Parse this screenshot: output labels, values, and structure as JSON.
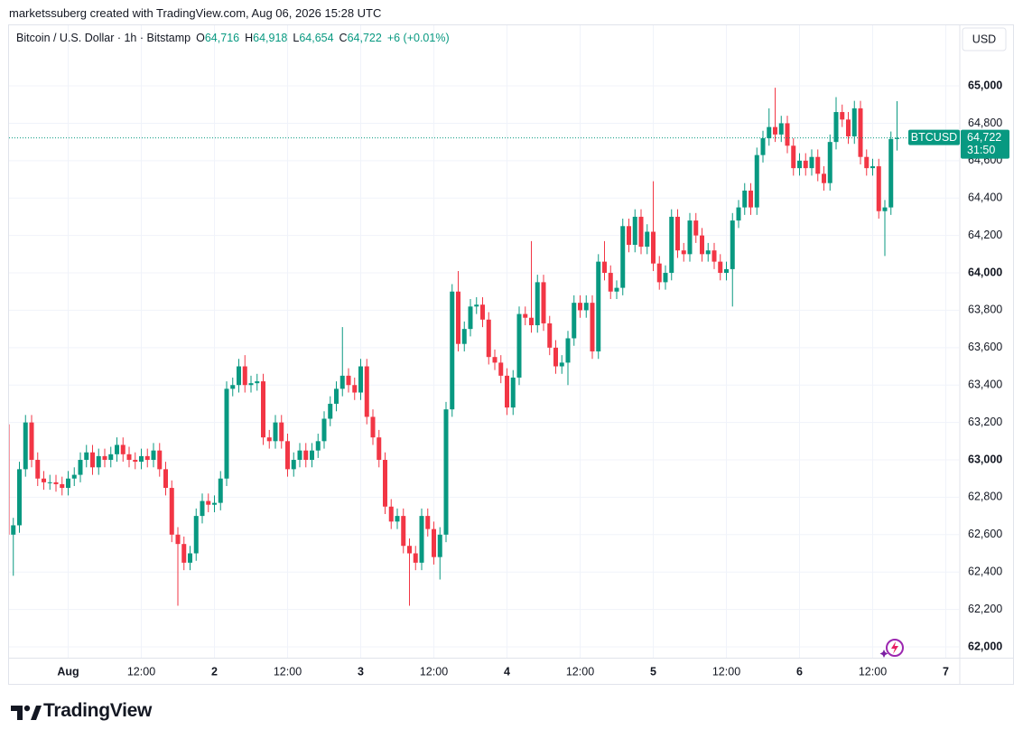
{
  "header": {
    "credit": "marketssuberg created with TradingView.com, Aug 06, 2026 15:28 UTC"
  },
  "chart_data": {
    "type": "candlestick",
    "title": "Bitcoin / U.S. Dollar · 1h · Bitstamp",
    "legend_values": [
      {
        "prefix": "O",
        "text": "64,716"
      },
      {
        "prefix": "H",
        "text": "64,918"
      },
      {
        "prefix": "L",
        "text": "64,654"
      },
      {
        "prefix": "C",
        "text": "64,722"
      }
    ],
    "change": "+6 (+0.01%)",
    "currency": "USD",
    "symbol": "BTCUSD",
    "last_price_label": "64,722",
    "countdown": "31:50",
    "up_color": "#089981",
    "down_color": "#f23645",
    "grid": true,
    "xtick_labels": [
      "Aug",
      "12:00",
      "2",
      "12:00",
      "3",
      "12:00",
      "4",
      "12:00",
      "5",
      "12:00",
      "6",
      "12:00",
      "7"
    ],
    "ylim": [
      61942,
      65324
    ],
    "yticks": [
      {
        "value": 62000,
        "label": "62,000"
      },
      {
        "value": 62200,
        "label": "62,200"
      },
      {
        "value": 62400,
        "label": "62,400"
      },
      {
        "value": 62600,
        "label": "62,600"
      },
      {
        "value": 62800,
        "label": "62,800"
      },
      {
        "value": 63000,
        "label": "63,000"
      },
      {
        "value": 63200,
        "label": "63,200"
      },
      {
        "value": 63400,
        "label": "63,400"
      },
      {
        "value": 63600,
        "label": "63,600"
      },
      {
        "value": 63800,
        "label": "63,800"
      },
      {
        "value": 64000,
        "label": "64,000"
      },
      {
        "value": 64200,
        "label": "64,200"
      },
      {
        "value": 64400,
        "label": "64,400"
      },
      {
        "value": 64600,
        "label": "64,600"
      },
      {
        "value": 64800,
        "label": "64,800"
      },
      {
        "value": 65000,
        "label": "65,000"
      }
    ],
    "open": [
      63190,
      62600,
      62650,
      62950,
      63200,
      63000,
      62900,
      62880,
      62880,
      62870,
      62850,
      62900,
      62920,
      63000,
      63040,
      62960,
      63020,
      63000,
      63030,
      63080,
      63030,
      63000,
      62990,
      63020,
      63000,
      63050,
      62950,
      62850,
      62600,
      62550,
      62450,
      62500,
      62700,
      62780,
      62760,
      62770,
      62900,
      63380,
      63400,
      63500,
      63400,
      63410,
      63420,
      63120,
      63100,
      63200,
      63100,
      62950,
      63000,
      63050,
      63000,
      63050,
      63100,
      63220,
      63300,
      63380,
      63450,
      63400,
      63360,
      63500,
      63230,
      63120,
      63000,
      62750,
      62670,
      62700,
      62540,
      62500,
      62450,
      62700,
      62630,
      62480,
      62600,
      63270,
      63900,
      63620,
      63700,
      63820,
      63830,
      63750,
      63550,
      63520,
      63450,
      63280,
      63440,
      63780,
      63760,
      63720,
      63950,
      63730,
      63600,
      63500,
      63520,
      63650,
      63840,
      63800,
      63840,
      63580,
      64060,
      64000,
      63900,
      63920,
      64250,
      64150,
      64300,
      64140,
      64220,
      64050,
      63950,
      64000,
      64300,
      64120,
      64100,
      64280,
      64200,
      64100,
      64120,
      64060,
      64000,
      64020,
      64280,
      64350,
      64440,
      64350,
      64630,
      64720,
      64780,
      64740,
      64800,
      64680,
      64560,
      64600,
      64560,
      64620,
      64530,
      64480,
      64700,
      64860,
      64820,
      64730,
      64880,
      64620,
      64560,
      64570,
      64330,
      64350,
      64716
    ],
    "high": [
      63230,
      62690,
      62990,
      63240,
      63240,
      63040,
      62940,
      62920,
      62920,
      62910,
      62940,
      62960,
      63040,
      63080,
      63080,
      63060,
      63060,
      63070,
      63120,
      63120,
      63070,
      63040,
      63060,
      63060,
      63090,
      63090,
      62990,
      62890,
      62640,
      62590,
      62540,
      62740,
      62820,
      62820,
      62810,
      62940,
      63420,
      63440,
      63540,
      63560,
      63450,
      63460,
      63460,
      63160,
      63240,
      63240,
      63140,
      63040,
      63090,
      63090,
      63090,
      63140,
      63260,
      63340,
      63420,
      63710,
      63490,
      63440,
      63540,
      63540,
      63270,
      63160,
      63040,
      62790,
      62740,
      62740,
      62580,
      62540,
      62740,
      62740,
      62670,
      62640,
      63310,
      63940,
      64010,
      63740,
      63860,
      63870,
      63870,
      63790,
      63590,
      63560,
      63490,
      63480,
      63820,
      63820,
      64170,
      63990,
      63990,
      63770,
      63640,
      63560,
      63690,
      63880,
      63880,
      63880,
      63880,
      64100,
      64170,
      64040,
      63960,
      64290,
      64290,
      64340,
      64340,
      64260,
      64490,
      64090,
      64040,
      64340,
      64340,
      64160,
      64320,
      64320,
      64240,
      64160,
      64160,
      64100,
      64060,
      64320,
      64390,
      64480,
      64480,
      64670,
      64760,
      64880,
      64990,
      64840,
      64840,
      64720,
      64640,
      64640,
      64660,
      64660,
      64570,
      64740,
      64940,
      64900,
      64860,
      64920,
      64920,
      64660,
      64610,
      64610,
      64390,
      64756,
      64918
    ],
    "low": [
      62560,
      62380,
      62610,
      62910,
      62960,
      62860,
      62840,
      62840,
      62830,
      62810,
      62810,
      62860,
      62880,
      62960,
      62920,
      62920,
      62960,
      62960,
      62990,
      62990,
      62960,
      62950,
      62950,
      62960,
      62960,
      62910,
      62810,
      62560,
      62220,
      62410,
      62410,
      62460,
      62660,
      62720,
      62720,
      62730,
      62860,
      63340,
      63360,
      63360,
      63360,
      63370,
      63080,
      63060,
      63060,
      63060,
      62910,
      62910,
      62960,
      62960,
      62960,
      63010,
      63060,
      63180,
      63260,
      63340,
      63360,
      63320,
      63320,
      63190,
      63080,
      62960,
      62710,
      62630,
      62630,
      62500,
      62220,
      62410,
      62410,
      62590,
      62440,
      62360,
      62560,
      63230,
      63580,
      63580,
      63660,
      63780,
      63710,
      63510,
      63480,
      63410,
      63240,
      63240,
      63400,
      63720,
      63680,
      63680,
      63690,
      63560,
      63460,
      63460,
      63400,
      63610,
      63760,
      63760,
      63540,
      63540,
      63960,
      63860,
      63860,
      63880,
      64110,
      64110,
      64100,
      64100,
      64010,
      63910,
      63910,
      63960,
      64080,
      64060,
      64060,
      64160,
      64060,
      64060,
      64020,
      63960,
      63960,
      63820,
      64240,
      64310,
      64310,
      64310,
      64590,
      64680,
      64700,
      64700,
      64640,
      64520,
      64520,
      64520,
      64520,
      64490,
      64440,
      64440,
      64660,
      64780,
      64690,
      64690,
      64580,
      64520,
      64520,
      64290,
      64090,
      64310,
      64654
    ],
    "close": [
      62600,
      62650,
      62950,
      63200,
      63000,
      62900,
      62880,
      62880,
      62870,
      62850,
      62900,
      62920,
      63000,
      63040,
      62960,
      63020,
      63000,
      63030,
      63080,
      63030,
      63000,
      62990,
      63020,
      63000,
      63050,
      62950,
      62850,
      62600,
      62550,
      62450,
      62500,
      62700,
      62780,
      62760,
      62770,
      62900,
      63380,
      63400,
      63500,
      63400,
      63410,
      63420,
      63120,
      63100,
      63200,
      63100,
      62950,
      63000,
      63050,
      63000,
      63050,
      63100,
      63220,
      63300,
      63380,
      63450,
      63400,
      63360,
      63500,
      63230,
      63120,
      63000,
      62750,
      62670,
      62700,
      62540,
      62500,
      62450,
      62700,
      62630,
      62480,
      62600,
      63270,
      63900,
      63620,
      63700,
      63820,
      63830,
      63750,
      63550,
      63520,
      63450,
      63280,
      63440,
      63780,
      63760,
      63720,
      63950,
      63730,
      63600,
      63500,
      63520,
      63650,
      63840,
      63800,
      63840,
      63580,
      64060,
      64000,
      63900,
      63920,
      64250,
      64150,
      64300,
      64140,
      64220,
      64050,
      63950,
      64000,
      64300,
      64120,
      64100,
      64280,
      64200,
      64100,
      64120,
      64060,
      64000,
      64020,
      64280,
      64350,
      64440,
      64350,
      64630,
      64720,
      64780,
      64740,
      64800,
      64680,
      64560,
      64600,
      64560,
      64620,
      64530,
      64480,
      64700,
      64860,
      64820,
      64730,
      64880,
      64620,
      64560,
      64570,
      64330,
      64350,
      64716,
      64722
    ]
  },
  "footer": {
    "brand": "TradingView"
  }
}
